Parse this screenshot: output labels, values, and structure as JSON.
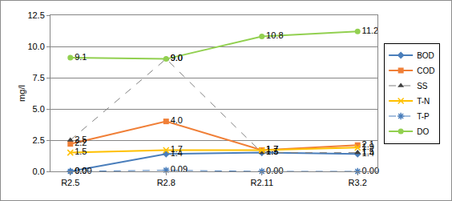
{
  "chart_data": {
    "type": "line",
    "y_label": "mg/l",
    "categories": [
      "R2.5",
      "R2.8",
      "R2.11",
      "R3.2"
    ],
    "ylim": [
      0,
      12.5
    ],
    "yticks": [
      {
        "value": 0,
        "label": "0.0"
      },
      2.5,
      {
        "value": 5,
        "label": "5.0"
      },
      7.5,
      {
        "value": 10,
        "label": "10.0"
      },
      12.5
    ],
    "grid": true,
    "legend": "right",
    "data_labels": true,
    "series": [
      {
        "name": "BOD",
        "color": "#4a7ebb",
        "marker": "diamond",
        "line_style": "solid",
        "values": [
          0,
          1.4,
          1.5,
          1.4
        ],
        "value_labels": [
          "0.0",
          "1.4",
          "1.5",
          "1.4"
        ]
      },
      {
        "name": "COD",
        "color": "#f07f37",
        "marker": "square",
        "line_style": "solid",
        "values": [
          2.2,
          4.0,
          1.7,
          2.1
        ],
        "value_labels": [
          "2.2",
          "4.0",
          "1.7",
          "2.1"
        ]
      },
      {
        "name": "SS",
        "color": "#7f7f7f",
        "marker": "triangle",
        "line_style": "dash",
        "values": [
          2.5,
          9.0,
          1.5,
          1.5
        ],
        "value_labels": [
          "2.5",
          "9.0",
          "1.5",
          "1.5"
        ]
      },
      {
        "name": "T-N",
        "color": "#ffc000",
        "marker": "x",
        "line_style": "solid",
        "values": [
          1.5,
          1.7,
          1.7,
          1.9
        ],
        "value_labels": [
          "1.5",
          "1.7",
          "1.7",
          "1.9"
        ]
      },
      {
        "name": "T-P",
        "color": "#4a7ebb",
        "marker": "asterisk",
        "line_style": "dash",
        "values": [
          0,
          0.09,
          0,
          0
        ],
        "value_labels": [
          "0.00",
          "0.09",
          "0.00",
          "0.00"
        ]
      },
      {
        "name": "DO",
        "color": "#92d050",
        "marker": "circle",
        "line_style": "solid",
        "values": [
          9.1,
          9.0,
          10.8,
          11.2
        ],
        "value_labels": [
          "9.1",
          "9.0",
          "10.8",
          "11.2"
        ]
      }
    ]
  }
}
